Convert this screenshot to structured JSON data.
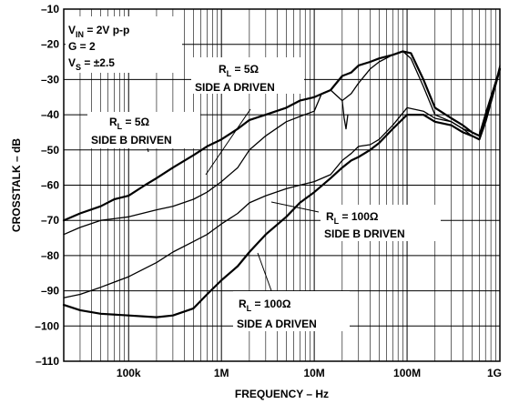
{
  "chart_data": {
    "type": "line",
    "xlabel": "FREQUENCY – Hz",
    "ylabel": "CROSSTALK – dB",
    "xscale": "log",
    "xlim": [
      20000,
      1000000000
    ],
    "ylim": [
      -110,
      -10
    ],
    "grid": true,
    "x_ticks": [
      {
        "value": 100000,
        "label": "100k"
      },
      {
        "value": 1000000,
        "label": "1M"
      },
      {
        "value": 10000000,
        "label": "10M"
      },
      {
        "value": 100000000,
        "label": "100M"
      },
      {
        "value": 1000000000,
        "label": "1G"
      }
    ],
    "y_ticks": [
      {
        "value": -10,
        "label": "–10"
      },
      {
        "value": -20,
        "label": "–20"
      },
      {
        "value": -30,
        "label": "–30"
      },
      {
        "value": -40,
        "label": "–40"
      },
      {
        "value": -50,
        "label": "–50"
      },
      {
        "value": -60,
        "label": "–60"
      },
      {
        "value": -70,
        "label": "–70"
      },
      {
        "value": -80,
        "label": "–80"
      },
      {
        "value": -90,
        "label": "–90"
      },
      {
        "value": -100,
        "label": "–100"
      },
      {
        "value": -110,
        "label": "–110"
      }
    ],
    "conditions": {
      "line1": {
        "main": "V",
        "sub": "IN",
        "rest": " = 2V p-p"
      },
      "line2": {
        "main": "G = 2"
      },
      "line3": {
        "main": "V",
        "sub": "S",
        "rest": " = ±2.5"
      }
    },
    "annotations": [
      {
        "r_main": "R",
        "r_sub": "L",
        "r_rest": " = 5Ω",
        "side": "SIDE B DRIVEN"
      },
      {
        "r_main": "R",
        "r_sub": "L",
        "r_rest": " = 5Ω",
        "side": "SIDE A DRIVEN"
      },
      {
        "r_main": "R",
        "r_sub": "L",
        "r_rest": " = 100Ω",
        "side": "SIDE B DRIVEN"
      },
      {
        "r_main": "R",
        "r_sub": "L",
        "r_rest": " = 100Ω",
        "side": "SIDE A DRIVEN"
      }
    ],
    "series": [
      {
        "id": "rl5-side-b",
        "width": 2.2,
        "x": [
          20000,
          30000,
          50000,
          70000,
          100000,
          150000,
          200000,
          300000,
          500000,
          700000,
          1000000,
          1500000,
          2000000,
          3000000,
          5000000,
          7000000,
          10000000,
          15000000,
          20000000,
          25000000,
          30000000,
          40000000,
          50000000,
          70000000,
          90000000,
          110000000,
          150000000,
          200000000,
          300000000,
          400000000,
          500000000,
          600000000,
          700000000,
          1000000000
        ],
        "y": [
          -70,
          -68,
          -66,
          -64,
          -63,
          -60,
          -58,
          -55,
          -51.5,
          -49,
          -47,
          -44,
          -41.5,
          -40,
          -38,
          -36,
          -35,
          -33,
          -29,
          -28,
          -26,
          -25,
          -24,
          -23,
          -22,
          -22.5,
          -30,
          -38,
          -41,
          -43,
          -45,
          -46,
          -40,
          -27
        ]
      },
      {
        "id": "rl5-side-a",
        "width": 1.3,
        "x": [
          20000,
          30000,
          50000,
          100000,
          200000,
          300000,
          500000,
          700000,
          1000000,
          1500000,
          2000000,
          3000000,
          5000000,
          7000000,
          10000000,
          12000000,
          15000000,
          20000000,
          25000000,
          30000000,
          40000000,
          50000000,
          70000000,
          90000000,
          110000000,
          150000000,
          200000000,
          300000000,
          400000000,
          500000000,
          600000000,
          700000000,
          1000000000
        ],
        "y": [
          -74,
          -72,
          -70,
          -69,
          -67,
          -66,
          -64,
          -62,
          -59,
          -55,
          -50,
          -46,
          -42,
          -40.5,
          -39,
          -34,
          -33,
          -36,
          -34,
          -31,
          -27,
          -25,
          -23,
          -22,
          -24,
          -32,
          -40,
          -42,
          -44,
          -46,
          -47,
          -42,
          -26
        ]
      },
      {
        "id": "rl100-side-b",
        "width": 1.3,
        "x": [
          20000,
          30000,
          50000,
          100000,
          200000,
          300000,
          500000,
          700000,
          1000000,
          1500000,
          2000000,
          3000000,
          5000000,
          7000000,
          10000000,
          15000000,
          20000000,
          25000000,
          30000000,
          40000000,
          50000000,
          70000000,
          100000000,
          150000000,
          200000000,
          300000000,
          400000000,
          500000000,
          600000000,
          700000000,
          1000000000
        ],
        "y": [
          -92,
          -91,
          -89,
          -86,
          -82,
          -79,
          -76,
          -74,
          -71,
          -68,
          -65,
          -63,
          -61,
          -60,
          -59,
          -57,
          -53,
          -51,
          -49,
          -48.5,
          -47,
          -43,
          -38,
          -39,
          -41,
          -42,
          -44,
          -45,
          -46,
          -41,
          -27
        ]
      },
      {
        "id": "rl100-side-a",
        "width": 2.2,
        "x": [
          20000,
          30000,
          50000,
          100000,
          200000,
          300000,
          500000,
          700000,
          1000000,
          1500000,
          2000000,
          3000000,
          5000000,
          7000000,
          10000000,
          15000000,
          20000000,
          25000000,
          30000000,
          40000000,
          50000000,
          70000000,
          100000000,
          150000000,
          200000000,
          300000000,
          400000000,
          500000000,
          600000000,
          700000000,
          1000000000
        ],
        "y": [
          -94,
          -95.5,
          -96.5,
          -97,
          -97.5,
          -97,
          -95,
          -91,
          -87,
          -83,
          -79,
          -74,
          -69,
          -65,
          -62,
          -58,
          -55,
          -53,
          -52,
          -50,
          -48,
          -44,
          -40,
          -40,
          -42,
          -43,
          -45,
          -46,
          -47,
          -42,
          -27
        ]
      },
      {
        "id": "rl5-side-a-dip",
        "width": 1.3,
        "x": [
          20000000,
          21000000,
          22000000,
          23000000
        ],
        "y": [
          -36,
          -41,
          -44,
          -40
        ]
      }
    ]
  }
}
